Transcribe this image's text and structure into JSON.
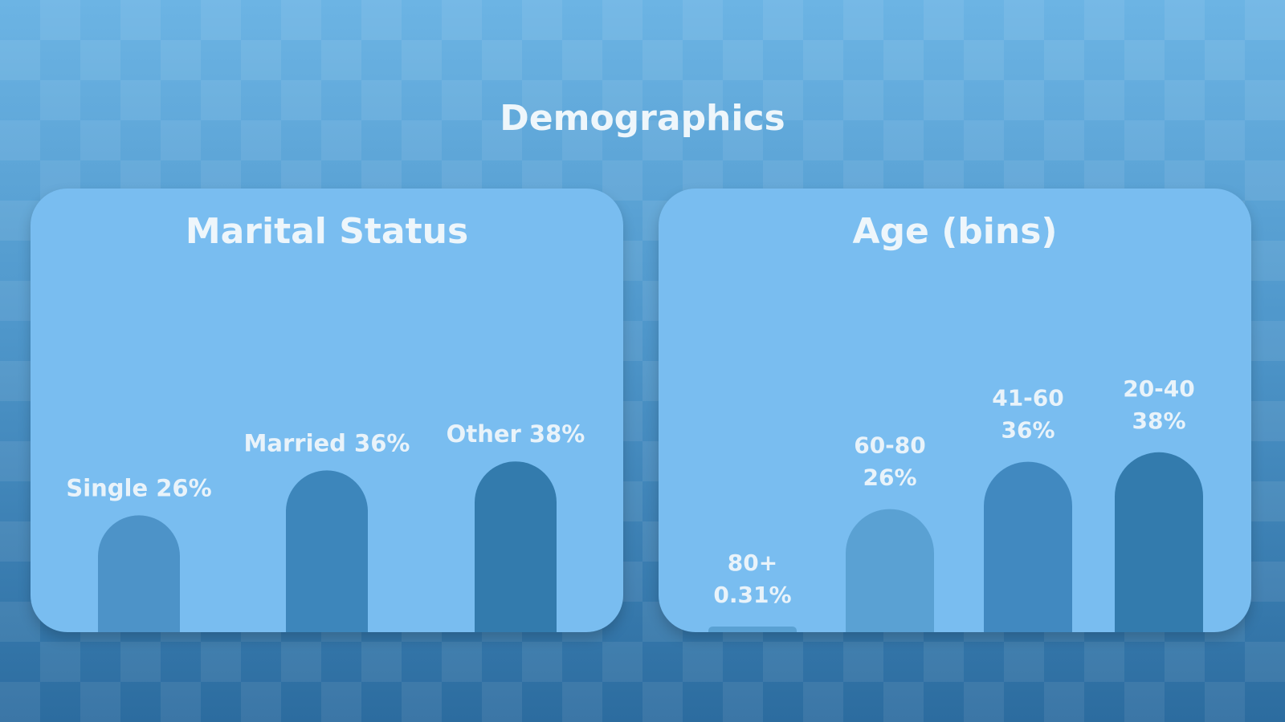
{
  "title": "Demographics",
  "chart_data": [
    {
      "type": "bar",
      "title": "Marital Status",
      "categories": [
        "Single",
        "Married",
        "Other"
      ],
      "values": [
        26,
        36,
        38
      ],
      "value_labels": [
        "26%",
        "36%",
        "38%"
      ],
      "label_style": "inline",
      "colors": [
        "#4d93c8",
        "#3d86bb",
        "#337bad"
      ]
    },
    {
      "type": "bar",
      "title": "Age (bins)",
      "categories": [
        "80+",
        "60-80",
        "41-60",
        "20-40"
      ],
      "values": [
        0.31,
        26,
        36,
        38
      ],
      "value_labels": [
        "0.31%",
        "26%",
        "36%",
        "38%"
      ],
      "label_style": "stacked",
      "colors": [
        "#5aa1d3",
        "#5aa1d3",
        "#4189c0",
        "#337bad"
      ]
    }
  ]
}
